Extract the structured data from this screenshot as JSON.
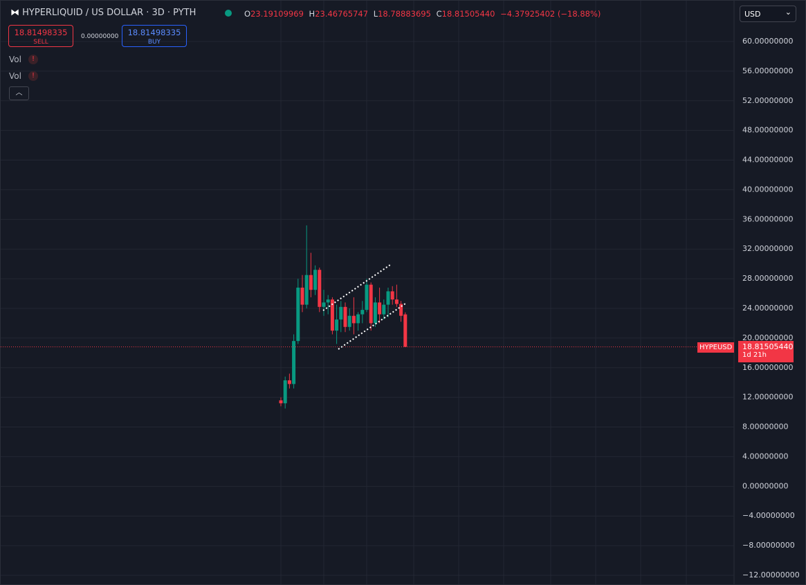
{
  "header": {
    "title": "HYPERLIQUID / US DOLLAR · 3D · PYTH",
    "ohlc": [
      {
        "key": "O",
        "value": "23.19109969"
      },
      {
        "key": "H",
        "value": "23.46765747"
      },
      {
        "key": "L",
        "value": "18.78883695"
      },
      {
        "key": "C",
        "value": "18.81505440"
      }
    ],
    "change": "−4.37925402 (−18.88%)"
  },
  "trade": {
    "sell_price": "18.81498335",
    "sell": "SELL",
    "spread": "0.00000000",
    "buy_price": "18.81498335",
    "buy": "BUY"
  },
  "indicators": [
    {
      "name": "Vol",
      "icon": "!"
    },
    {
      "name": "Vol",
      "icon": "!"
    }
  ],
  "currency": "USD",
  "price_tag": {
    "symbol": "HYPEUSD",
    "price": "18.81505440",
    "countdown": "1d 21h"
  },
  "chart_data": {
    "type": "candlestick",
    "categories": [
      null,
      null,
      null,
      null,
      null,
      null,
      null,
      null,
      null,
      null,
      null,
      null,
      null,
      null,
      null,
      null,
      null,
      null,
      null,
      null,
      null,
      null,
      null,
      null,
      null,
      null,
      null,
      null,
      null,
      null
    ],
    "open": [
      11.6,
      11.2,
      14.3,
      13.8,
      19.6,
      26.8,
      24.5,
      28.5,
      26.5,
      29.2,
      24.2,
      24.8,
      25.2,
      21.0,
      22.5,
      24.2,
      21.5,
      23.0,
      22.0,
      23.2,
      23.8,
      27.2,
      22.0,
      24.8,
      23.2,
      24.5,
      26.3,
      25.2,
      24.6,
      23.19109969
    ],
    "high": [
      12.0,
      14.8,
      15.2,
      20.5,
      28.0,
      28.5,
      35.2,
      31.5,
      29.8,
      29.5,
      26.5,
      25.8,
      25.5,
      24.5,
      25.0,
      24.8,
      24.0,
      25.5,
      23.5,
      25.0,
      28.0,
      27.5,
      25.5,
      26.8,
      25.2,
      26.8,
      27.0,
      27.2,
      25.0,
      23.46765747
    ],
    "low": [
      10.8,
      10.5,
      13.2,
      13.2,
      19.2,
      23.5,
      24.0,
      25.5,
      25.8,
      23.5,
      23.0,
      23.2,
      20.5,
      19.2,
      20.8,
      20.8,
      21.0,
      20.5,
      21.0,
      22.0,
      23.5,
      21.0,
      21.5,
      22.0,
      22.5,
      22.8,
      24.5,
      24.2,
      22.2,
      18.78883695
    ],
    "close": [
      11.2,
      14.3,
      13.8,
      19.6,
      26.8,
      24.5,
      28.5,
      26.5,
      29.2,
      24.2,
      24.8,
      25.2,
      21.0,
      22.5,
      24.2,
      21.5,
      23.0,
      22.0,
      23.2,
      23.8,
      27.2,
      22.0,
      24.8,
      23.2,
      24.5,
      26.3,
      25.2,
      24.6,
      23.0,
      18.8150544
    ],
    "up_color": "#089981",
    "down_color": "#f23645",
    "ylim": [
      -13.4,
      65.5
    ],
    "yticks": [
      {
        "value": 60,
        "label": "60.00000000"
      },
      {
        "value": 56,
        "label": "56.00000000"
      },
      {
        "value": 52,
        "label": "52.00000000"
      },
      {
        "value": 48,
        "label": "48.00000000"
      },
      {
        "value": 44,
        "label": "44.00000000"
      },
      {
        "value": 40,
        "label": "40.00000000"
      },
      {
        "value": 36,
        "label": "36.00000000"
      },
      {
        "value": 32,
        "label": "32.00000000"
      },
      {
        "value": 28,
        "label": "28.00000000"
      },
      {
        "value": 24,
        "label": "24.00000000"
      },
      {
        "value": 20,
        "label": "20.00000000"
      },
      {
        "value": 16,
        "label": "16.00000000"
      },
      {
        "value": 12,
        "label": "12.00000000"
      },
      {
        "value": 8,
        "label": "8.00000000"
      },
      {
        "value": 4,
        "label": "4.00000000"
      },
      {
        "value": 0,
        "label": "0.00000000"
      },
      {
        "value": -4,
        "label": "−4.00000000"
      },
      {
        "value": -8,
        "label": "−8.00000000"
      },
      {
        "value": -12,
        "label": "−12.00000000"
      }
    ],
    "grid": true
  }
}
